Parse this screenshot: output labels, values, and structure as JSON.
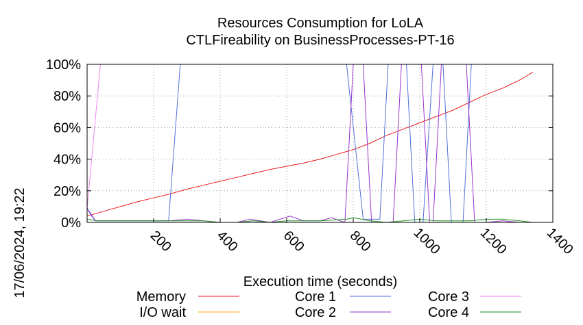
{
  "chart_data": {
    "type": "line",
    "title": "Resources Consumption for LoLA",
    "subtitle": "CTLFireability on BusinessProcesses-PT-16",
    "xlabel": "Execution time (seconds)",
    "ylabel": "",
    "side_label": "17/06/2024, 19:22",
    "xlim": [
      0,
      1400
    ],
    "ylim": [
      0,
      100
    ],
    "x_ticks": [
      200,
      400,
      600,
      800,
      1000,
      1200,
      1400
    ],
    "y_ticks": [
      0,
      20,
      40,
      60,
      80,
      100
    ],
    "y_tick_labels": [
      "0%",
      "20%",
      "40%",
      "60%",
      "80%",
      "100%"
    ],
    "grid": true,
    "legend_position": "bottom",
    "series": [
      {
        "name": "Memory",
        "color": "#e8191c",
        "points": [
          [
            0,
            4
          ],
          [
            50,
            7
          ],
          [
            100,
            10
          ],
          [
            150,
            13
          ],
          [
            200,
            15.5
          ],
          [
            250,
            18
          ],
          [
            300,
            21
          ],
          [
            350,
            23.5
          ],
          [
            400,
            26
          ],
          [
            450,
            28.5
          ],
          [
            500,
            31
          ],
          [
            550,
            33.5
          ],
          [
            600,
            35.5
          ],
          [
            650,
            37.5
          ],
          [
            700,
            40
          ],
          [
            750,
            43
          ],
          [
            800,
            46
          ],
          [
            850,
            50
          ],
          [
            900,
            55
          ],
          [
            950,
            59
          ],
          [
            1000,
            63
          ],
          [
            1050,
            67
          ],
          [
            1100,
            71
          ],
          [
            1150,
            76
          ],
          [
            1200,
            81
          ],
          [
            1250,
            85
          ],
          [
            1300,
            90
          ],
          [
            1340,
            95
          ]
        ]
      },
      {
        "name": "I/O wait",
        "color": "#ffa500",
        "points": [
          [
            0,
            0
          ],
          [
            1340,
            0
          ]
        ]
      },
      {
        "name": "Core 1",
        "color": "#4f6fd8",
        "points": [
          [
            0,
            9
          ],
          [
            10,
            5
          ],
          [
            25,
            1
          ],
          [
            100,
            1
          ],
          [
            200,
            1
          ],
          [
            245,
            1
          ],
          [
            280,
            100
          ],
          [
            780,
            100
          ],
          [
            830,
            2
          ],
          [
            880,
            2
          ],
          [
            905,
            100
          ],
          [
            960,
            100
          ],
          [
            985,
            0
          ],
          [
            1010,
            0
          ],
          [
            1040,
            100
          ],
          [
            1070,
            100
          ],
          [
            1095,
            0
          ],
          [
            1130,
            0
          ],
          [
            1155,
            100
          ],
          [
            1340,
            100
          ]
        ]
      },
      {
        "name": "Core 2",
        "color": "#9932cc",
        "points": [
          [
            0,
            9
          ],
          [
            25,
            1
          ],
          [
            100,
            1
          ],
          [
            200,
            1
          ],
          [
            250,
            1
          ],
          [
            300,
            2
          ],
          [
            350,
            1
          ],
          [
            400,
            0
          ],
          [
            450,
            0
          ],
          [
            490,
            2
          ],
          [
            520,
            1
          ],
          [
            550,
            0
          ],
          [
            610,
            4
          ],
          [
            650,
            1
          ],
          [
            700,
            1
          ],
          [
            735,
            3
          ],
          [
            760,
            1
          ],
          [
            775,
            0
          ],
          [
            800,
            100
          ],
          [
            830,
            100
          ],
          [
            855,
            0
          ],
          [
            920,
            0
          ],
          [
            945,
            100
          ],
          [
            1005,
            100
          ],
          [
            1030,
            0
          ],
          [
            1040,
            0
          ],
          [
            1065,
            100
          ],
          [
            1140,
            100
          ],
          [
            1165,
            0
          ],
          [
            1200,
            0
          ],
          [
            1250,
            1
          ],
          [
            1300,
            0
          ],
          [
            1340,
            0
          ]
        ]
      },
      {
        "name": "Core 3",
        "color": "#ee82ee",
        "points": [
          [
            0,
            9
          ],
          [
            40,
            100
          ],
          [
            1340,
            100
          ]
        ]
      },
      {
        "name": "Core 4",
        "color": "#1f8f1f",
        "points": [
          [
            0,
            2
          ],
          [
            30,
            1
          ],
          [
            150,
            1
          ],
          [
            200,
            1
          ],
          [
            300,
            1
          ],
          [
            350,
            1
          ],
          [
            400,
            0
          ],
          [
            450,
            0
          ],
          [
            500,
            1
          ],
          [
            550,
            0
          ],
          [
            600,
            1
          ],
          [
            700,
            1
          ],
          [
            780,
            2
          ],
          [
            800,
            3
          ],
          [
            850,
            1
          ],
          [
            900,
            0
          ],
          [
            950,
            1
          ],
          [
            1000,
            2
          ],
          [
            1050,
            1
          ],
          [
            1100,
            1
          ],
          [
            1150,
            1
          ],
          [
            1200,
            2
          ],
          [
            1250,
            2
          ],
          [
            1300,
            1
          ],
          [
            1340,
            0
          ]
        ]
      }
    ]
  }
}
